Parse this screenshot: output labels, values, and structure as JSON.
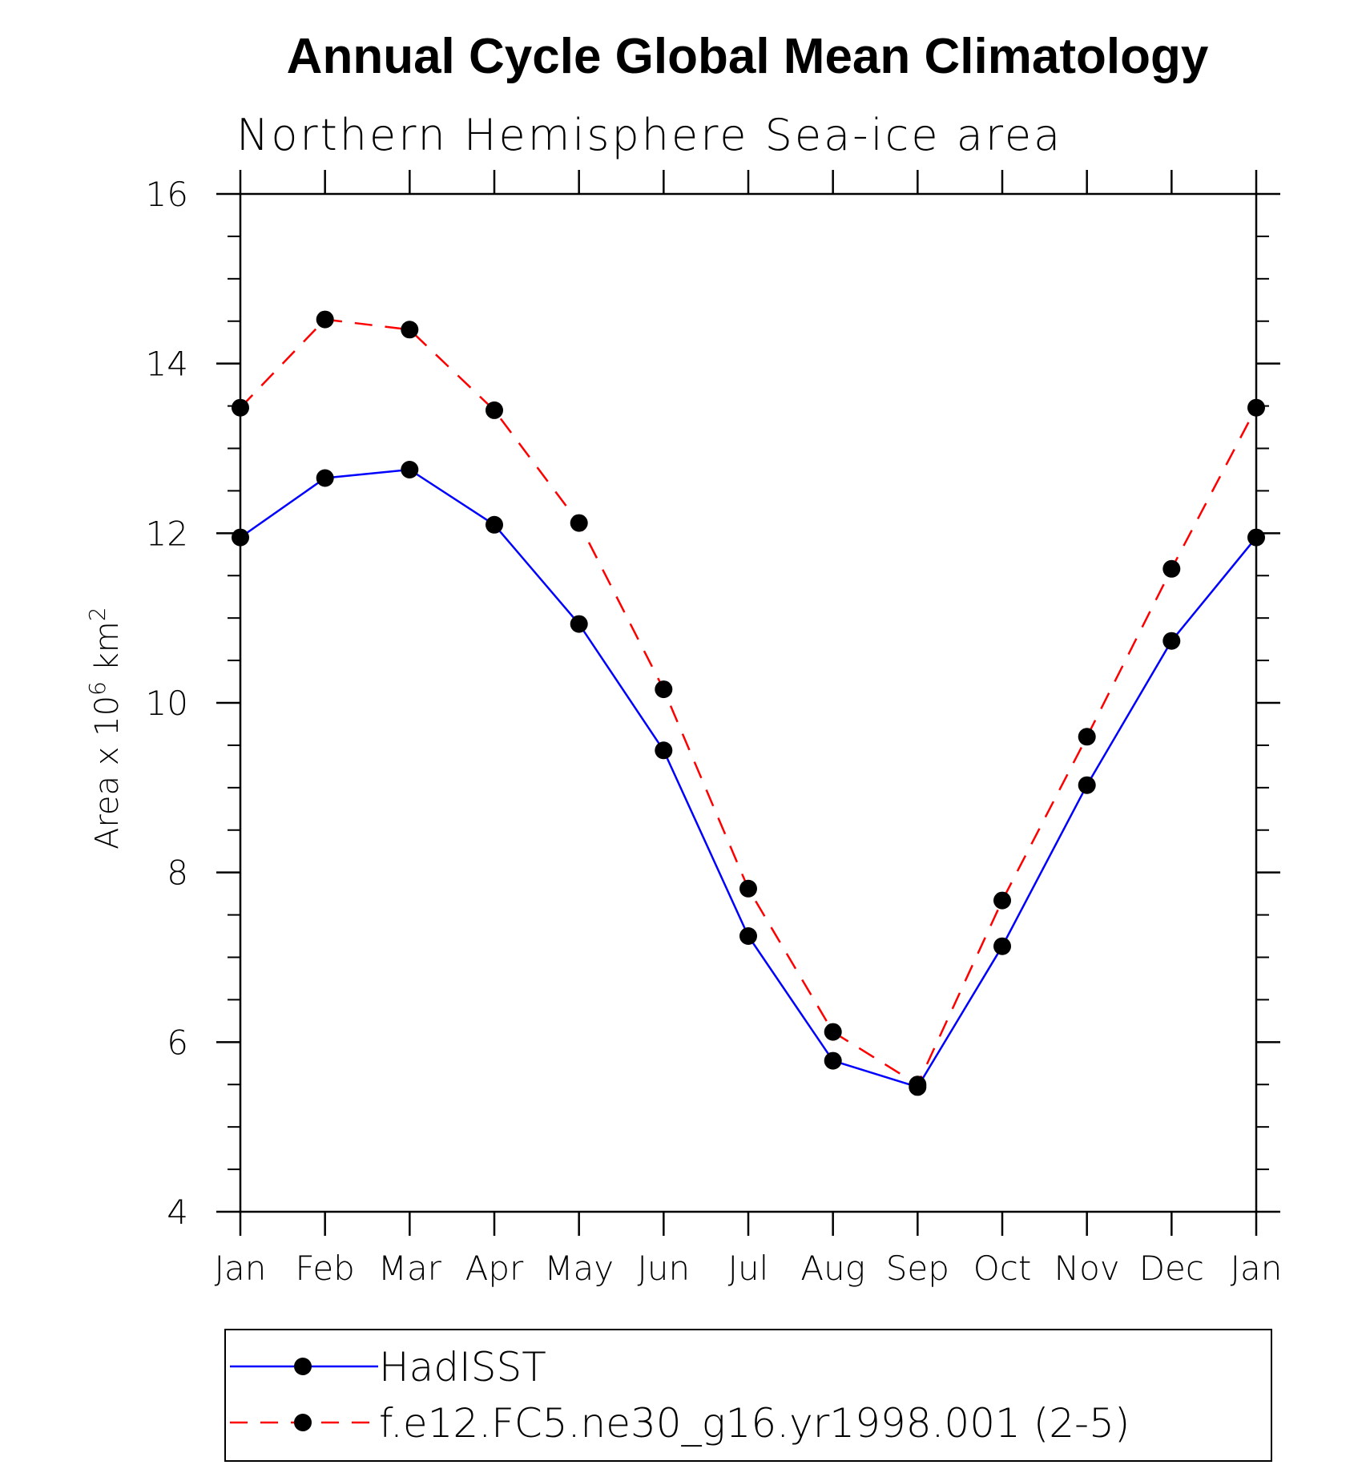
{
  "chart_data": {
    "type": "line",
    "title": "Annual Cycle Global Mean Climatology",
    "subtitle": "Northern Hemisphere Sea-ice area",
    "ylabel": {
      "prefix": "Area x 10",
      "exp1": "6",
      "mid": " km",
      "exp2": "2"
    },
    "xlabel": "",
    "categories": [
      "Jan",
      "Feb",
      "Mar",
      "Apr",
      "May",
      "Jun",
      "Jul",
      "Aug",
      "Sep",
      "Oct",
      "Nov",
      "Dec",
      "Jan"
    ],
    "ylim": [
      4,
      16
    ],
    "yticks": [
      4,
      6,
      8,
      10,
      12,
      14,
      16
    ],
    "yminor_step": 0.5,
    "grid": false,
    "legend_position": "bottom",
    "series": [
      {
        "name": "HadISST",
        "color": "#0000ff",
        "dash": "solid",
        "marker": "filled-circle",
        "values": [
          11.95,
          12.65,
          12.75,
          12.1,
          10.93,
          9.44,
          7.25,
          5.78,
          5.47,
          7.13,
          9.03,
          10.73,
          11.95
        ]
      },
      {
        "name": "f.e12.FC5.ne30_g16.yr1998.001 (2-5)",
        "color": "#ff0000",
        "dash": "dashed",
        "marker": "filled-circle",
        "values": [
          13.48,
          14.52,
          14.4,
          13.45,
          12.12,
          10.16,
          7.81,
          6.12,
          5.5,
          7.67,
          9.6,
          11.58,
          13.48
        ]
      }
    ]
  }
}
